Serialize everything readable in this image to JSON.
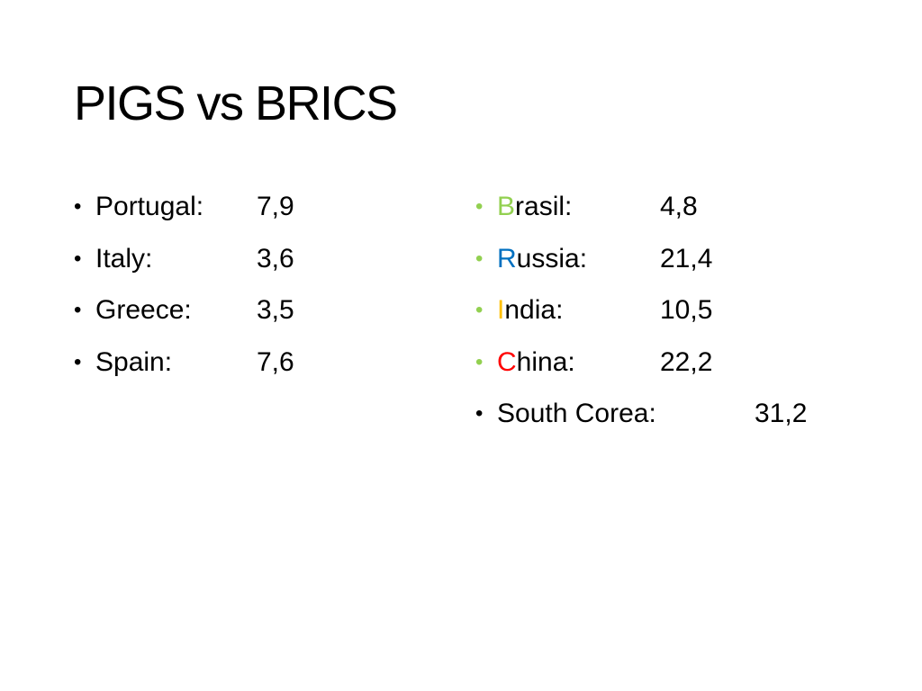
{
  "slide": {
    "title": "PIGS vs BRICS"
  },
  "left_list": [
    {
      "label": "Portugal:",
      "value": "7,9"
    },
    {
      "label": "Italy:",
      "value": "3,6"
    },
    {
      "label": "Greece:",
      "value": "3,5"
    },
    {
      "label": "Spain:",
      "value": "7,6"
    }
  ],
  "right_list": [
    {
      "initial": "B",
      "rest": "rasil:",
      "value": "4,8",
      "initial_color": "#92d050"
    },
    {
      "initial": "R",
      "rest": "ussia:",
      "value": "21,4",
      "initial_color": "#0070c0"
    },
    {
      "initial": "I",
      "rest": "ndia:",
      "value": "10,5",
      "initial_color": "#ffc000"
    },
    {
      "initial": "C",
      "rest": "hina:",
      "value": "22,2",
      "initial_color": "#ff0000"
    },
    {
      "initial": "",
      "rest": "South Corea:",
      "value": "31,2",
      "initial_color": "#000000"
    }
  ],
  "bullet_glyph": "•",
  "colors": {
    "brics_bullet": "#92d050",
    "text": "#000000",
    "background": "#ffffff"
  }
}
